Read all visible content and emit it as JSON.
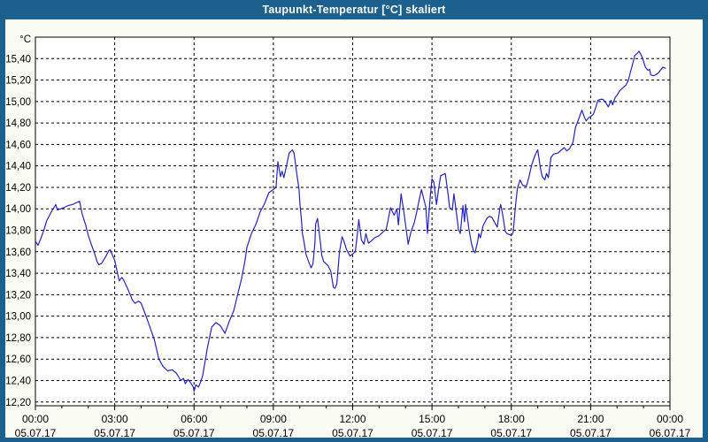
{
  "window": {
    "title": "Taupunkt-Temperatur [°C] skaliert"
  },
  "colors": {
    "frame": "#1c608e",
    "title_text": "#ffffff",
    "background": "#fbfcf4",
    "plot_background": "#ffffff",
    "grid": "#000000",
    "axis": "#000000",
    "label_text": "#000000",
    "line": "#2323be"
  },
  "chart_data": {
    "type": "line",
    "title": "Taupunkt-Temperatur [°C] skaliert",
    "y_unit_label": "°C",
    "grid": "dashed",
    "legend": "none",
    "xlim_hours": [
      0,
      24
    ],
    "ylim": [
      12.165,
      15.6
    ],
    "x_minor_tick_hours": 1,
    "x_ticks": [
      {
        "hour": 0,
        "time": "00:00",
        "date": "05.07.17"
      },
      {
        "hour": 3,
        "time": "03:00",
        "date": "05.07.17"
      },
      {
        "hour": 6,
        "time": "06:00",
        "date": "05.07.17"
      },
      {
        "hour": 9,
        "time": "09:00",
        "date": "05.07.17"
      },
      {
        "hour": 12,
        "time": "12:00",
        "date": "05.07.17"
      },
      {
        "hour": 15,
        "time": "15:00",
        "date": "05.07.17"
      },
      {
        "hour": 18,
        "time": "18:00",
        "date": "05.07.17"
      },
      {
        "hour": 21,
        "time": "21:00",
        "date": "05.07.17"
      },
      {
        "hour": 24,
        "time": "00:00",
        "date": "06.07.17"
      }
    ],
    "y_ticks": [
      {
        "value": 12.2,
        "label": "12,20"
      },
      {
        "value": 12.4,
        "label": "12,40"
      },
      {
        "value": 12.6,
        "label": "12,60"
      },
      {
        "value": 12.8,
        "label": "12,80"
      },
      {
        "value": 13.0,
        "label": "13,00"
      },
      {
        "value": 13.2,
        "label": "13,20"
      },
      {
        "value": 13.4,
        "label": "13,40"
      },
      {
        "value": 13.6,
        "label": "13,60"
      },
      {
        "value": 13.8,
        "label": "13,80"
      },
      {
        "value": 14.0,
        "label": "14,00"
      },
      {
        "value": 14.2,
        "label": "14,20"
      },
      {
        "value": 14.4,
        "label": "14,40"
      },
      {
        "value": 14.6,
        "label": "14,60"
      },
      {
        "value": 14.8,
        "label": "14,80"
      },
      {
        "value": 15.0,
        "label": "15,00"
      },
      {
        "value": 15.2,
        "label": "15,20"
      },
      {
        "value": 15.4,
        "label": "15,40"
      }
    ],
    "series": [
      {
        "name": "Taupunkt-Temperatur",
        "color": "#2323be",
        "points": [
          [
            0,
            13.7
          ],
          [
            0.1,
            13.66
          ],
          [
            0.23,
            13.74
          ],
          [
            0.33,
            13.81
          ],
          [
            0.43,
            13.89
          ],
          [
            0.6,
            13.97
          ],
          [
            0.77,
            14.04
          ],
          [
            0.83,
            13.99
          ],
          [
            1.07,
            14.01
          ],
          [
            1.23,
            14.03
          ],
          [
            1.4,
            14.04
          ],
          [
            1.57,
            14.06
          ],
          [
            1.67,
            14.07
          ],
          [
            1.77,
            13.95
          ],
          [
            1.9,
            13.85
          ],
          [
            2.0,
            13.75
          ],
          [
            2.1,
            13.68
          ],
          [
            2.23,
            13.59
          ],
          [
            2.33,
            13.51
          ],
          [
            2.4,
            13.48
          ],
          [
            2.5,
            13.49
          ],
          [
            2.67,
            13.56
          ],
          [
            2.77,
            13.61
          ],
          [
            2.83,
            13.62
          ],
          [
            3.0,
            13.52
          ],
          [
            3.17,
            13.33
          ],
          [
            3.27,
            13.36
          ],
          [
            3.33,
            13.34
          ],
          [
            3.5,
            13.25
          ],
          [
            3.67,
            13.15
          ],
          [
            3.77,
            13.12
          ],
          [
            3.9,
            13.14
          ],
          [
            4.0,
            13.12
          ],
          [
            4.17,
            13.01
          ],
          [
            4.33,
            12.9
          ],
          [
            4.5,
            12.78
          ],
          [
            4.67,
            12.6
          ],
          [
            4.83,
            12.53
          ],
          [
            5.0,
            12.49
          ],
          [
            5.17,
            12.5
          ],
          [
            5.33,
            12.47
          ],
          [
            5.5,
            12.4
          ],
          [
            5.6,
            12.42
          ],
          [
            5.67,
            12.37
          ],
          [
            5.77,
            12.41
          ],
          [
            5.87,
            12.38
          ],
          [
            5.97,
            12.34
          ],
          [
            6.0,
            12.3
          ],
          [
            6.07,
            12.36
          ],
          [
            6.17,
            12.34
          ],
          [
            6.27,
            12.4
          ],
          [
            6.33,
            12.45
          ],
          [
            6.5,
            12.7
          ],
          [
            6.67,
            12.9
          ],
          [
            6.83,
            12.94
          ],
          [
            7.0,
            12.91
          ],
          [
            7.17,
            12.84
          ],
          [
            7.33,
            12.95
          ],
          [
            7.5,
            13.05
          ],
          [
            7.67,
            13.22
          ],
          [
            7.8,
            13.35
          ],
          [
            7.93,
            13.52
          ],
          [
            8.0,
            13.64
          ],
          [
            8.17,
            13.77
          ],
          [
            8.33,
            13.85
          ],
          [
            8.5,
            13.97
          ],
          [
            8.67,
            14.05
          ],
          [
            8.83,
            14.15
          ],
          [
            9.0,
            14.18
          ],
          [
            9.1,
            14.2
          ],
          [
            9.17,
            14.44
          ],
          [
            9.27,
            14.3
          ],
          [
            9.33,
            14.35
          ],
          [
            9.4,
            14.29
          ],
          [
            9.6,
            14.52
          ],
          [
            9.72,
            14.55
          ],
          [
            9.78,
            14.52
          ],
          [
            9.83,
            14.43
          ],
          [
            9.9,
            14.3
          ],
          [
            9.97,
            14.18
          ],
          [
            10.0,
            14.06
          ],
          [
            10.07,
            13.88
          ],
          [
            10.1,
            13.77
          ],
          [
            10.17,
            13.68
          ],
          [
            10.23,
            13.58
          ],
          [
            10.33,
            13.51
          ],
          [
            10.43,
            13.45
          ],
          [
            10.5,
            13.49
          ],
          [
            10.57,
            13.68
          ],
          [
            10.6,
            13.86
          ],
          [
            10.67,
            13.91
          ],
          [
            10.78,
            13.68
          ],
          [
            10.83,
            13.57
          ],
          [
            10.9,
            13.51
          ],
          [
            11.07,
            13.47
          ],
          [
            11.17,
            13.42
          ],
          [
            11.27,
            13.27
          ],
          [
            11.33,
            13.26
          ],
          [
            11.4,
            13.3
          ],
          [
            11.5,
            13.6
          ],
          [
            11.6,
            13.74
          ],
          [
            11.67,
            13.7
          ],
          [
            11.77,
            13.62
          ],
          [
            11.9,
            13.56
          ],
          [
            12.0,
            13.58
          ],
          [
            12.1,
            13.6
          ],
          [
            12.17,
            13.75
          ],
          [
            12.23,
            13.9
          ],
          [
            12.33,
            13.71
          ],
          [
            12.43,
            13.67
          ],
          [
            12.5,
            13.77
          ],
          [
            12.6,
            13.68
          ],
          [
            12.7,
            13.7
          ],
          [
            12.83,
            13.73
          ],
          [
            13.0,
            13.75
          ],
          [
            13.17,
            13.79
          ],
          [
            13.27,
            13.81
          ],
          [
            13.33,
            13.88
          ],
          [
            13.43,
            14.01
          ],
          [
            13.57,
            13.94
          ],
          [
            13.67,
            14.0
          ],
          [
            13.73,
            13.85
          ],
          [
            13.83,
            14.14
          ],
          [
            13.93,
            13.98
          ],
          [
            14.03,
            13.8
          ],
          [
            14.1,
            13.67
          ],
          [
            14.2,
            13.78
          ],
          [
            14.33,
            13.87
          ],
          [
            14.43,
            13.98
          ],
          [
            14.53,
            14.1
          ],
          [
            14.6,
            14.18
          ],
          [
            14.7,
            14.08
          ],
          [
            14.77,
            14.01
          ],
          [
            14.83,
            13.77
          ],
          [
            14.93,
            14.1
          ],
          [
            15.0,
            14.28
          ],
          [
            15.07,
            14.25
          ],
          [
            15.17,
            14.04
          ],
          [
            15.27,
            14.22
          ],
          [
            15.33,
            14.31
          ],
          [
            15.43,
            14.32
          ],
          [
            15.5,
            14.33
          ],
          [
            15.6,
            14.15
          ],
          [
            15.67,
            14.01
          ],
          [
            15.77,
            13.99
          ],
          [
            15.83,
            14.14
          ],
          [
            15.93,
            13.95
          ],
          [
            16.0,
            13.81
          ],
          [
            16.07,
            13.77
          ],
          [
            16.17,
            14.03
          ],
          [
            16.23,
            13.88
          ],
          [
            16.27,
            14.04
          ],
          [
            16.4,
            13.81
          ],
          [
            16.5,
            13.67
          ],
          [
            16.57,
            13.61
          ],
          [
            16.63,
            13.59
          ],
          [
            16.73,
            13.7
          ],
          [
            16.77,
            13.77
          ],
          [
            16.83,
            13.73
          ],
          [
            16.93,
            13.84
          ],
          [
            17.07,
            13.91
          ],
          [
            17.17,
            13.93
          ],
          [
            17.27,
            13.92
          ],
          [
            17.4,
            13.86
          ],
          [
            17.47,
            13.83
          ],
          [
            17.57,
            14.01
          ],
          [
            17.6,
            14.04
          ],
          [
            17.67,
            13.95
          ],
          [
            17.77,
            13.79
          ],
          [
            17.83,
            13.77
          ],
          [
            17.93,
            13.76
          ],
          [
            18.0,
            13.75
          ],
          [
            18.07,
            13.78
          ],
          [
            18.17,
            14.05
          ],
          [
            18.23,
            14.19
          ],
          [
            18.33,
            14.27
          ],
          [
            18.43,
            14.22
          ],
          [
            18.57,
            14.21
          ],
          [
            18.67,
            14.3
          ],
          [
            18.77,
            14.41
          ],
          [
            18.9,
            14.5
          ],
          [
            19.0,
            14.55
          ],
          [
            19.1,
            14.38
          ],
          [
            19.17,
            14.3
          ],
          [
            19.27,
            14.27
          ],
          [
            19.33,
            14.33
          ],
          [
            19.4,
            14.29
          ],
          [
            19.5,
            14.48
          ],
          [
            19.6,
            14.51
          ],
          [
            19.77,
            14.52
          ],
          [
            19.9,
            14.55
          ],
          [
            20.0,
            14.57
          ],
          [
            20.1,
            14.54
          ],
          [
            20.2,
            14.56
          ],
          [
            20.33,
            14.62
          ],
          [
            20.43,
            14.76
          ],
          [
            20.57,
            14.85
          ],
          [
            20.67,
            14.92
          ],
          [
            20.77,
            14.85
          ],
          [
            20.83,
            14.82
          ],
          [
            20.93,
            14.85
          ],
          [
            21.0,
            14.86
          ],
          [
            21.1,
            14.88
          ],
          [
            21.2,
            14.95
          ],
          [
            21.27,
            15.01
          ],
          [
            21.37,
            15.02
          ],
          [
            21.47,
            15.02
          ],
          [
            21.57,
            14.99
          ],
          [
            21.67,
            14.95
          ],
          [
            21.77,
            15.01
          ],
          [
            21.83,
            14.97
          ],
          [
            21.93,
            15.04
          ],
          [
            22.0,
            15.06
          ],
          [
            22.1,
            15.1
          ],
          [
            22.23,
            15.13
          ],
          [
            22.33,
            15.15
          ],
          [
            22.43,
            15.2
          ],
          [
            22.5,
            15.27
          ],
          [
            22.6,
            15.36
          ],
          [
            22.67,
            15.43
          ],
          [
            22.77,
            15.45
          ],
          [
            22.83,
            15.47
          ],
          [
            22.9,
            15.44
          ],
          [
            22.97,
            15.4
          ],
          [
            23.07,
            15.32
          ],
          [
            23.17,
            15.29
          ],
          [
            23.23,
            15.3
          ],
          [
            23.27,
            15.25
          ],
          [
            23.37,
            15.24
          ],
          [
            23.47,
            15.25
          ],
          [
            23.57,
            15.27
          ],
          [
            23.67,
            15.3
          ],
          [
            23.73,
            15.32
          ],
          [
            23.83,
            15.31
          ]
        ]
      }
    ]
  }
}
